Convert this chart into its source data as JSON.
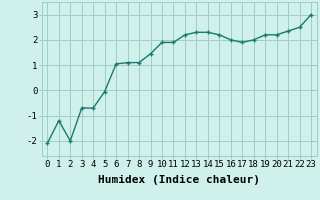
{
  "x": [
    0,
    1,
    2,
    3,
    4,
    5,
    6,
    7,
    8,
    9,
    10,
    11,
    12,
    13,
    14,
    15,
    16,
    17,
    18,
    19,
    20,
    21,
    22,
    23
  ],
  "y": [
    -2.1,
    -1.2,
    -2.0,
    -0.7,
    -0.7,
    -0.05,
    1.05,
    1.1,
    1.1,
    1.45,
    1.9,
    1.9,
    2.2,
    2.3,
    2.3,
    2.2,
    2.0,
    1.9,
    2.0,
    2.2,
    2.2,
    2.35,
    2.5,
    3.0
  ],
  "line_color": "#1a7a6e",
  "marker": "+",
  "marker_size": 3,
  "line_width": 1.0,
  "bg_color": "#cff0eb",
  "grid_color": "#a0ccc8",
  "xlabel": "Humidex (Indice chaleur)",
  "xlabel_fontsize": 8,
  "ylabel_ticks": [
    -2,
    -1,
    0,
    1,
    2,
    3
  ],
  "xlim": [
    -0.5,
    23.5
  ],
  "ylim": [
    -2.6,
    3.5
  ],
  "xtick_labels": [
    "0",
    "1",
    "2",
    "3",
    "4",
    "5",
    "6",
    "7",
    "8",
    "9",
    "10",
    "11",
    "12",
    "13",
    "14",
    "15",
    "16",
    "17",
    "18",
    "19",
    "20",
    "21",
    "22",
    "23"
  ],
  "tick_fontsize": 6.5
}
